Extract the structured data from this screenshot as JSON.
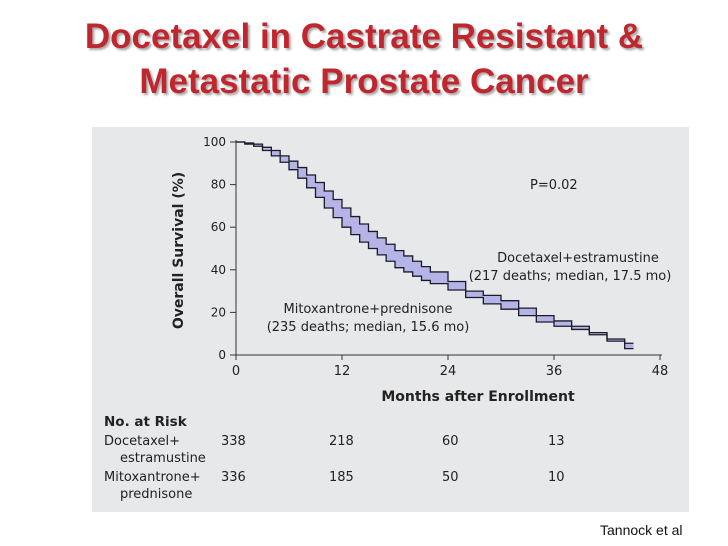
{
  "slide": {
    "title_line1": "Docetaxel in Castrate Resistant &",
    "title_line2": "Metastatic Prostate Cancer",
    "citation": "Tannock et al"
  },
  "chart_data": {
    "type": "line",
    "title": "",
    "xlabel": "Months after Enrollment",
    "ylabel": "Overall Survival (%)",
    "xlim": [
      0,
      48
    ],
    "ylim": [
      0,
      100
    ],
    "xticks": [
      0,
      12,
      24,
      36,
      48
    ],
    "yticks": [
      0,
      20,
      40,
      60,
      80,
      100
    ],
    "grid": false,
    "p_value": "P=0.02",
    "fill_between_color": "#b4b4e6",
    "series": [
      {
        "name": "Docetaxel+estramustine",
        "annotation_line1": "Docetaxel+estramustine",
        "annotation_line2": "(217 deaths; median, 17.5 mo)",
        "x": [
          0,
          1,
          2,
          3,
          4,
          5,
          6,
          7,
          8,
          9,
          10,
          11,
          12,
          13,
          14,
          15,
          16,
          17,
          18,
          19,
          20,
          21,
          22,
          24,
          26,
          28,
          30,
          32,
          34,
          36,
          38,
          40,
          42,
          44,
          45
        ],
        "y": [
          100,
          99.5,
          99,
          97.5,
          96,
          93.5,
          91,
          88,
          84.5,
          81,
          77,
          73,
          69,
          65,
          61.5,
          58,
          55,
          52,
          49,
          46.5,
          44,
          41.5,
          39,
          34.5,
          30,
          28,
          25.5,
          22,
          18.5,
          16,
          13.5,
          10.5,
          7.5,
          5.5,
          5.5
        ]
      },
      {
        "name": "Mitoxantrone+prednisone",
        "annotation_line1": "Mitoxantrone+prednisone",
        "annotation_line2": "(235 deaths; median, 15.6 mo)",
        "x": [
          0,
          1,
          2,
          3,
          4,
          5,
          6,
          7,
          8,
          9,
          10,
          11,
          12,
          13,
          14,
          15,
          16,
          17,
          18,
          19,
          20,
          21,
          22,
          24,
          26,
          28,
          30,
          32,
          34,
          36,
          38,
          40,
          42,
          44,
          45
        ],
        "y": [
          100,
          99,
          98,
          96,
          93.5,
          90.5,
          87,
          83,
          78.5,
          74,
          69,
          64.5,
          60,
          56.5,
          53,
          50,
          47,
          44,
          41,
          39,
          37,
          35,
          33.5,
          30.5,
          27,
          24,
          21.5,
          18.5,
          15.5,
          13.5,
          12,
          9.5,
          6.5,
          3,
          3
        ]
      }
    ],
    "risk_table": {
      "header": "No. at Risk",
      "rows": [
        {
          "label_line1": "Docetaxel+",
          "label_line2": "estramustine",
          "values": [
            "338",
            "218",
            "60",
            "13"
          ]
        },
        {
          "label_line1": "Mitoxantrone+",
          "label_line2": "prednisone",
          "values": [
            "336",
            "185",
            "50",
            "10"
          ]
        }
      ]
    }
  }
}
